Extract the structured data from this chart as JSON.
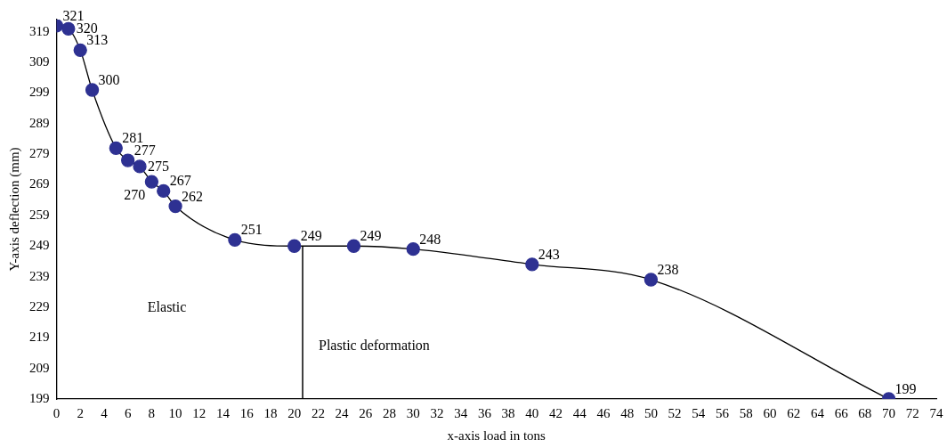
{
  "chart_data": {
    "type": "line",
    "xlabel": "x-axis load in tons",
    "ylabel": "Y-axis deflection (mm)",
    "x": [
      0,
      1,
      2,
      3,
      5,
      6,
      7,
      8,
      9,
      10,
      15,
      20,
      25,
      30,
      40,
      50,
      70
    ],
    "series": [
      {
        "color": "#2e3192",
        "values": [
          321,
          320,
          313,
          300,
          281,
          277,
          275,
          270,
          267,
          262,
          251,
          249,
          249,
          248,
          243,
          238,
          199
        ]
      }
    ],
    "xlim": [
      0,
      74
    ],
    "xticks": [
      0,
      2,
      4,
      6,
      8,
      10,
      12,
      14,
      16,
      18,
      20,
      22,
      24,
      26,
      28,
      30,
      32,
      34,
      36,
      38,
      40,
      42,
      44,
      46,
      48,
      50,
      52,
      54,
      56,
      58,
      60,
      62,
      64,
      66,
      68,
      70,
      72,
      74
    ],
    "ylim": [
      199,
      323
    ],
    "yticks": [
      199,
      209,
      219,
      229,
      239,
      249,
      259,
      269,
      279,
      289,
      299,
      309,
      319
    ],
    "ref_lines": [
      {
        "axis": "x",
        "value": 20.7,
        "color": "#000000"
      }
    ],
    "annotations": [
      "Elastic",
      "Plastic deformation"
    ],
    "data_labels": true,
    "marker": "circle",
    "grid": false,
    "legend": false
  }
}
